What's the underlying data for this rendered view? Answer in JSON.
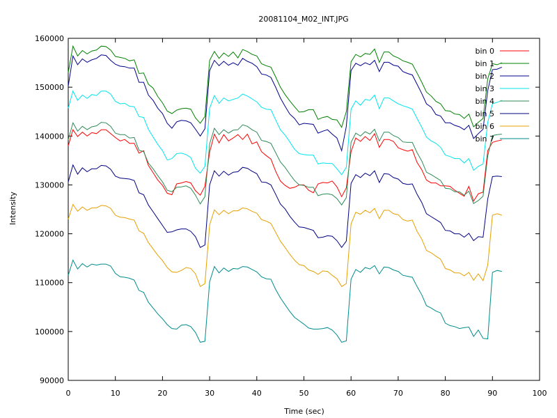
{
  "chart_data": {
    "type": "line",
    "title": "20081104_M02_INT.JPG",
    "xlabel": "Time (sec)",
    "ylabel": "Intensity",
    "xlim": [
      0,
      100
    ],
    "ylim": [
      90000,
      160000
    ],
    "xticks": [
      "0",
      "10",
      "20",
      "30",
      "40",
      "50",
      "60",
      "70",
      "80",
      "90",
      "100"
    ],
    "yticks": [
      "90000",
      "100000",
      "110000",
      "120000",
      "130000",
      "140000",
      "150000",
      "160000"
    ],
    "grid": false,
    "legend_position": "top-right",
    "x": [
      0,
      1,
      2,
      3,
      4,
      5,
      6,
      7,
      8,
      9,
      10,
      11,
      12,
      13,
      14,
      15,
      16,
      17,
      18,
      19,
      20,
      21,
      22,
      23,
      24,
      25,
      26,
      27,
      28,
      29,
      30,
      31,
      32,
      33,
      34,
      35,
      36,
      37,
      38,
      39,
      40,
      41,
      42,
      43,
      44,
      45,
      46,
      47,
      48,
      49,
      50,
      51,
      52,
      53,
      54,
      55,
      56,
      57,
      58,
      59,
      60,
      61,
      62,
      63,
      64,
      65,
      66,
      67,
      68,
      69,
      70,
      71,
      72,
      73,
      74,
      75,
      76,
      77,
      78,
      79,
      80,
      81,
      82,
      83,
      84,
      85,
      86,
      87,
      88,
      89,
      90,
      91,
      92
    ],
    "series": [
      {
        "name": "bin 0",
        "color": "#ff0000",
        "values": [
          138000,
          141300,
          139900,
          140800,
          140000,
          140700,
          140500,
          141300,
          141300,
          140500,
          139700,
          139000,
          139300,
          138500,
          138500,
          136500,
          137000,
          134000,
          132500,
          131000,
          129900,
          128300,
          128000,
          130200,
          130400,
          130700,
          130400,
          128800,
          127900,
          129700,
          136700,
          140400,
          138600,
          140300,
          139000,
          139600,
          140300,
          139300,
          140400,
          138400,
          138800,
          136800,
          136000,
          135300,
          132800,
          130800,
          129900,
          129300,
          129500,
          130000,
          130000,
          128900,
          128400,
          130200,
          130500,
          130400,
          130800,
          129600,
          127600,
          129400,
          136800,
          139600,
          138900,
          139900,
          139100,
          140500,
          137700,
          139300,
          139300,
          138900,
          137600,
          137200,
          136900,
          137200,
          134600,
          133100,
          131000,
          130400,
          130400,
          129800,
          129800,
          129700,
          128900,
          128300,
          127700,
          129700,
          126700,
          128200,
          128500,
          137000,
          138700,
          139000,
          139200
        ]
      },
      {
        "name": "bin 1",
        "color": "#008000",
        "values": [
          153000,
          158400,
          156400,
          157500,
          156800,
          157400,
          157600,
          158400,
          158300,
          157600,
          156300,
          156100,
          155900,
          155400,
          155600,
          152800,
          152900,
          150600,
          149800,
          148100,
          146800,
          145100,
          144600,
          145300,
          145600,
          145700,
          145500,
          143700,
          142600,
          144000,
          155500,
          157300,
          155900,
          157000,
          156300,
          157200,
          156000,
          157700,
          157300,
          156700,
          156400,
          154800,
          154400,
          154100,
          152100,
          150000,
          148500,
          147200,
          146000,
          144900,
          145000,
          145400,
          145400,
          143400,
          143800,
          144000,
          143400,
          143300,
          141800,
          145000,
          155200,
          156700,
          156200,
          156900,
          156700,
          157800,
          155100,
          157200,
          157200,
          156400,
          156000,
          155400,
          155100,
          154700,
          152900,
          151000,
          149000,
          148200,
          147100,
          146600,
          145200,
          145100,
          144500,
          144400,
          143600,
          144500,
          141900,
          142800,
          143600,
          151700,
          154800,
          154600,
          155000
        ]
      },
      {
        "name": "bin 2",
        "color": "#00008b",
        "values": [
          150200,
          156400,
          154600,
          155800,
          155100,
          155600,
          155900,
          156600,
          156500,
          155500,
          154700,
          154300,
          154200,
          153900,
          153900,
          151000,
          151000,
          148400,
          147300,
          145700,
          144600,
          142600,
          141600,
          142900,
          143200,
          143100,
          142700,
          141400,
          140000,
          141500,
          153400,
          155500,
          154400,
          155300,
          154500,
          155000,
          154500,
          155900,
          155300,
          154900,
          154200,
          152700,
          152500,
          152000,
          150000,
          147800,
          146100,
          144500,
          143600,
          142300,
          142600,
          142500,
          142400,
          140600,
          141000,
          141300,
          140400,
          139600,
          137000,
          142000,
          153400,
          154900,
          154400,
          155000,
          154600,
          155500,
          153200,
          155100,
          155100,
          154500,
          154300,
          153200,
          152800,
          152500,
          150600,
          148700,
          146600,
          145900,
          144400,
          144100,
          142700,
          142700,
          142200,
          141900,
          141300,
          142200,
          139500,
          140500,
          141400,
          149300,
          153600,
          153700,
          154100
        ]
      },
      {
        "name": "bin 3",
        "color": "#00e5ee",
        "values": [
          145700,
          149200,
          147300,
          148400,
          147700,
          148500,
          148300,
          149200,
          149200,
          148600,
          147100,
          146600,
          146700,
          146100,
          146000,
          144000,
          143800,
          141400,
          139800,
          138300,
          137000,
          135100,
          135400,
          136400,
          136500,
          136200,
          135600,
          133400,
          132400,
          133800,
          145700,
          148300,
          146700,
          147800,
          147200,
          147500,
          147800,
          148600,
          148200,
          147600,
          147000,
          145900,
          145500,
          145400,
          143300,
          141300,
          140200,
          138800,
          137300,
          136400,
          136200,
          136100,
          136100,
          134300,
          134500,
          134400,
          134400,
          133300,
          132100,
          133600,
          145500,
          147200,
          146300,
          147500,
          147300,
          148400,
          145600,
          147800,
          147800,
          147200,
          146600,
          146200,
          145900,
          145500,
          143600,
          141800,
          139800,
          139000,
          138500,
          137700,
          136100,
          135800,
          135400,
          135400,
          134500,
          135400,
          133000,
          133800,
          134300,
          142800,
          146600,
          146900,
          147300
        ]
      },
      {
        "name": "bin 4",
        "color": "#2e8b57",
        "values": [
          139200,
          142700,
          141000,
          142000,
          141300,
          141900,
          142100,
          142800,
          142700,
          142000,
          140600,
          140300,
          140300,
          139600,
          139700,
          137100,
          136800,
          134500,
          133300,
          131900,
          130600,
          128900,
          128600,
          129500,
          129600,
          129800,
          129300,
          127900,
          126100,
          127600,
          138400,
          141600,
          140300,
          141300,
          140600,
          141200,
          141300,
          142300,
          142000,
          141300,
          140800,
          139100,
          138900,
          138500,
          136600,
          134700,
          133600,
          132200,
          130900,
          130000,
          129900,
          129500,
          129500,
          127800,
          128100,
          128200,
          128000,
          127200,
          125900,
          127400,
          138700,
          140600,
          140000,
          140900,
          140400,
          141400,
          139000,
          140800,
          140800,
          140100,
          139700,
          138800,
          138700,
          138700,
          136600,
          134900,
          132600,
          132100,
          131500,
          130900,
          129300,
          129200,
          128600,
          128600,
          127900,
          128700,
          126200,
          126800,
          127700,
          135900,
          140100,
          140300,
          140400
        ]
      },
      {
        "name": "bin 5",
        "color": "#000080",
        "values": [
          130600,
          134100,
          132200,
          133500,
          132700,
          133300,
          133300,
          134000,
          133900,
          133200,
          131800,
          131400,
          131300,
          131200,
          130900,
          128400,
          128000,
          125900,
          124500,
          123100,
          121700,
          120300,
          120400,
          120800,
          121000,
          121000,
          120500,
          119400,
          117200,
          117700,
          130000,
          132900,
          131800,
          132800,
          132000,
          132600,
          132700,
          133600,
          133400,
          132800,
          132300,
          130600,
          130500,
          130000,
          128100,
          126100,
          125100,
          123600,
          122400,
          121400,
          121300,
          121000,
          120700,
          119200,
          119300,
          119600,
          119500,
          118600,
          117200,
          118500,
          130300,
          132100,
          131500,
          132400,
          131900,
          132900,
          130500,
          132300,
          132200,
          131500,
          131200,
          130300,
          130100,
          130200,
          128100,
          126400,
          124100,
          123500,
          122900,
          122300,
          120700,
          120600,
          120000,
          120000,
          119300,
          120100,
          118600,
          119400,
          119300,
          127100,
          131700,
          131800,
          131700
        ]
      },
      {
        "name": "bin 6",
        "color": "#e6a000",
        "values": [
          123000,
          126000,
          124600,
          125500,
          124800,
          125300,
          125300,
          125800,
          125700,
          125200,
          123800,
          123400,
          123300,
          123000,
          122800,
          120600,
          120100,
          118200,
          116900,
          115600,
          114500,
          113100,
          112200,
          112100,
          112500,
          113100,
          112900,
          111800,
          109200,
          109800,
          121800,
          124900,
          123900,
          124800,
          124100,
          124700,
          124700,
          125300,
          125100,
          124600,
          124200,
          122900,
          122600,
          122100,
          120300,
          118500,
          117200,
          115800,
          114600,
          113700,
          113500,
          112600,
          112300,
          111700,
          112400,
          112300,
          111500,
          110800,
          109200,
          109800,
          122000,
          124400,
          124000,
          124800,
          124300,
          125200,
          123100,
          124800,
          124800,
          124100,
          123900,
          122900,
          122600,
          122800,
          120500,
          118900,
          116600,
          116100,
          115400,
          114800,
          112900,
          112600,
          112000,
          112000,
          111400,
          112100,
          110500,
          111800,
          110400,
          113600,
          123800,
          124100,
          123800
        ]
      },
      {
        "name": "bin 7",
        "color": "#008b8b",
        "values": [
          111500,
          114600,
          112800,
          113900,
          113200,
          113800,
          113600,
          113800,
          113800,
          113400,
          111900,
          111200,
          111100,
          110900,
          110500,
          108400,
          108000,
          106000,
          104800,
          103600,
          102600,
          101400,
          100600,
          100500,
          101300,
          101400,
          101000,
          99800,
          97800,
          98000,
          110200,
          113300,
          112000,
          113000,
          112300,
          112900,
          112800,
          113300,
          113200,
          112700,
          112200,
          111200,
          110800,
          110700,
          108600,
          106900,
          105500,
          104100,
          102900,
          102200,
          101500,
          100700,
          100500,
          100500,
          100600,
          100800,
          100300,
          99300,
          97800,
          98100,
          110700,
          112700,
          112100,
          113100,
          112800,
          113500,
          111800,
          113200,
          113100,
          112600,
          112300,
          111500,
          111300,
          111100,
          109200,
          107500,
          105300,
          104800,
          104200,
          103800,
          101700,
          101200,
          101000,
          100600,
          100800,
          100900,
          99000,
          100300,
          98600,
          98500,
          112100,
          112500,
          112300
        ]
      }
    ]
  }
}
